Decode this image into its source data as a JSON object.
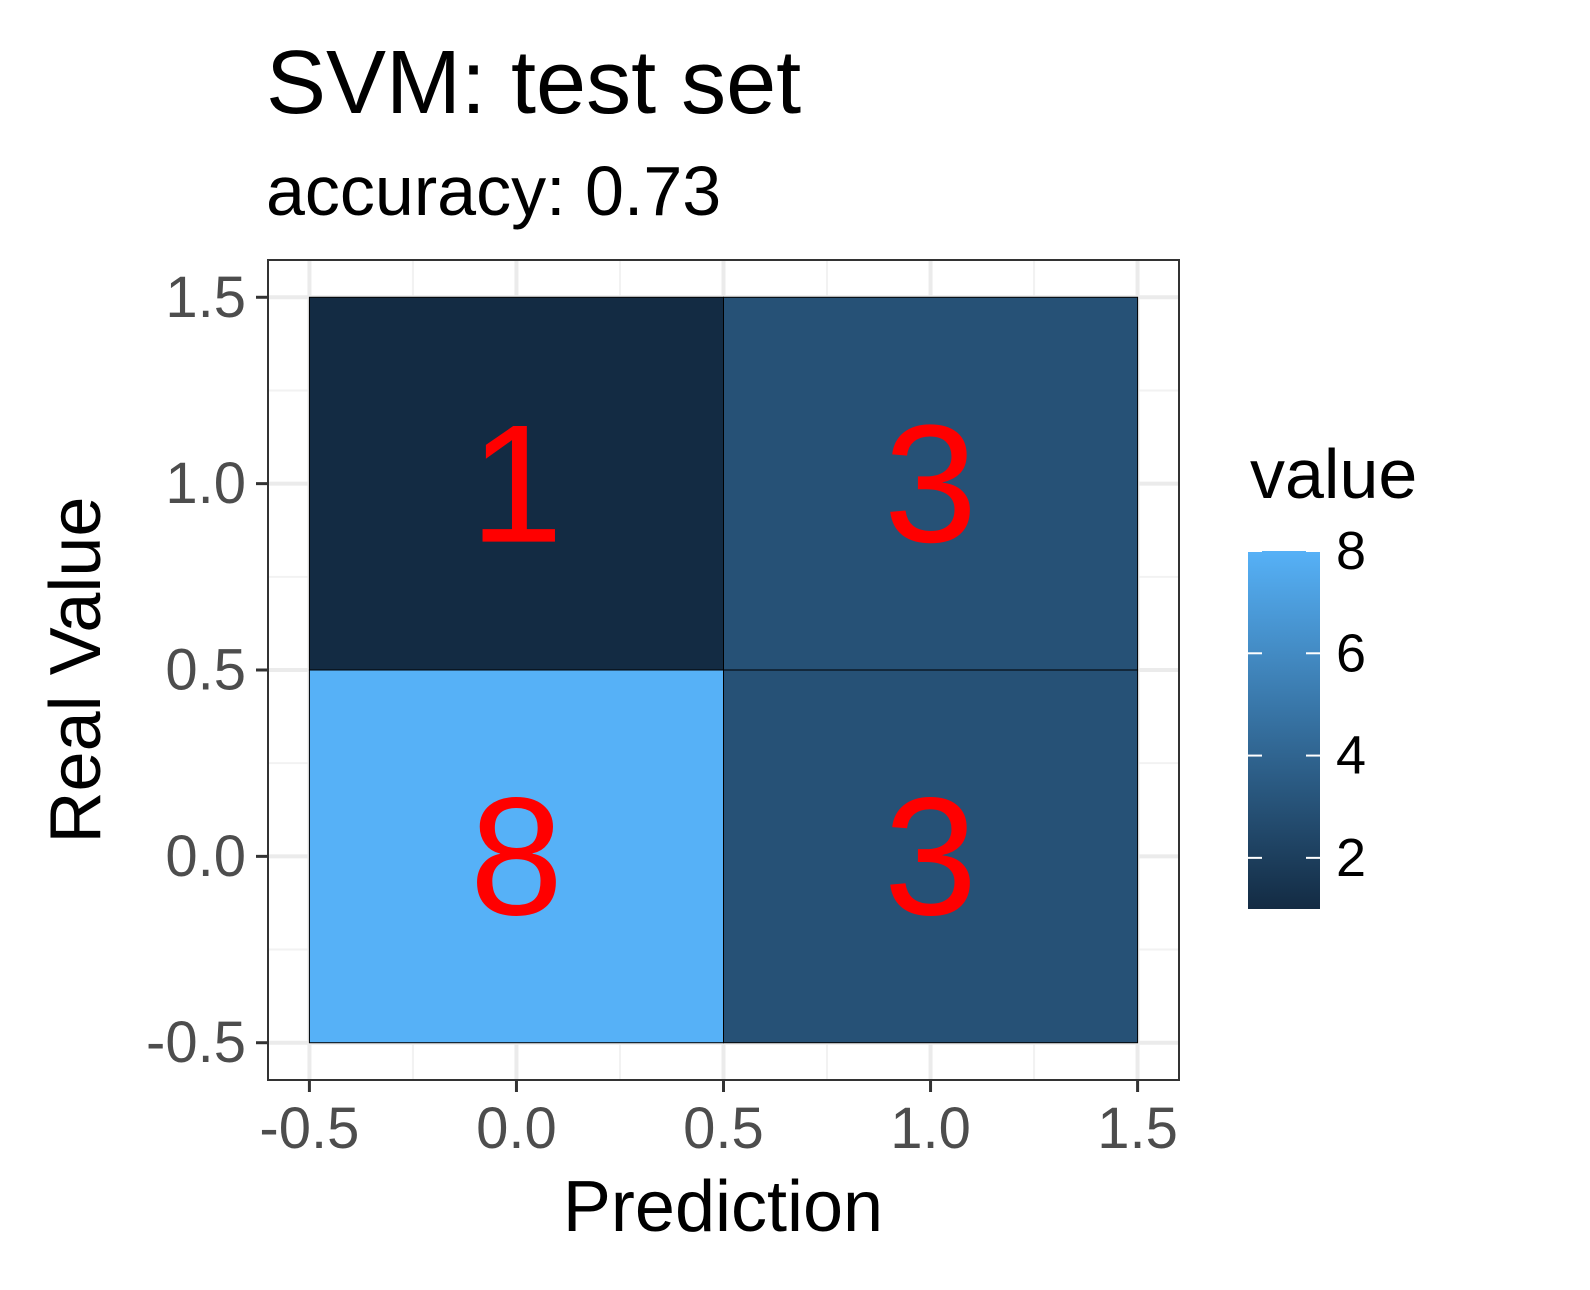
{
  "chart_data": {
    "type": "heatmap",
    "title": "SVM: test set",
    "subtitle": "accuracy: 0.73",
    "xlabel": "Prediction",
    "ylabel": "Real Value",
    "xlim": [
      -0.6,
      1.6
    ],
    "ylim": [
      -0.6,
      1.6
    ],
    "x_ticks": [
      "-0.5",
      "0.0",
      "0.5",
      "1.0",
      "1.5"
    ],
    "y_ticks": [
      "-0.5",
      "0.0",
      "0.5",
      "1.0",
      "1.5"
    ],
    "x_tick_values": [
      -0.5,
      0.0,
      0.5,
      1.0,
      1.5
    ],
    "y_tick_values": [
      -0.5,
      0.0,
      0.5,
      1.0,
      1.5
    ],
    "cells": [
      {
        "x": 0,
        "y": 1,
        "value": 1,
        "label": "1"
      },
      {
        "x": 1,
        "y": 1,
        "value": 3,
        "label": "3"
      },
      {
        "x": 0,
        "y": 0,
        "value": 8,
        "label": "8"
      },
      {
        "x": 1,
        "y": 0,
        "value": 3,
        "label": "3"
      }
    ],
    "label_color": "#ff0000",
    "grid": true,
    "legend": {
      "title": "value",
      "position": "right",
      "labels": [
        "8",
        "6",
        "4",
        "2"
      ],
      "label_values": [
        8,
        6,
        4,
        2
      ],
      "range": [
        1,
        8
      ],
      "low_color": "#132b43",
      "high_color": "#56b1f7"
    }
  }
}
